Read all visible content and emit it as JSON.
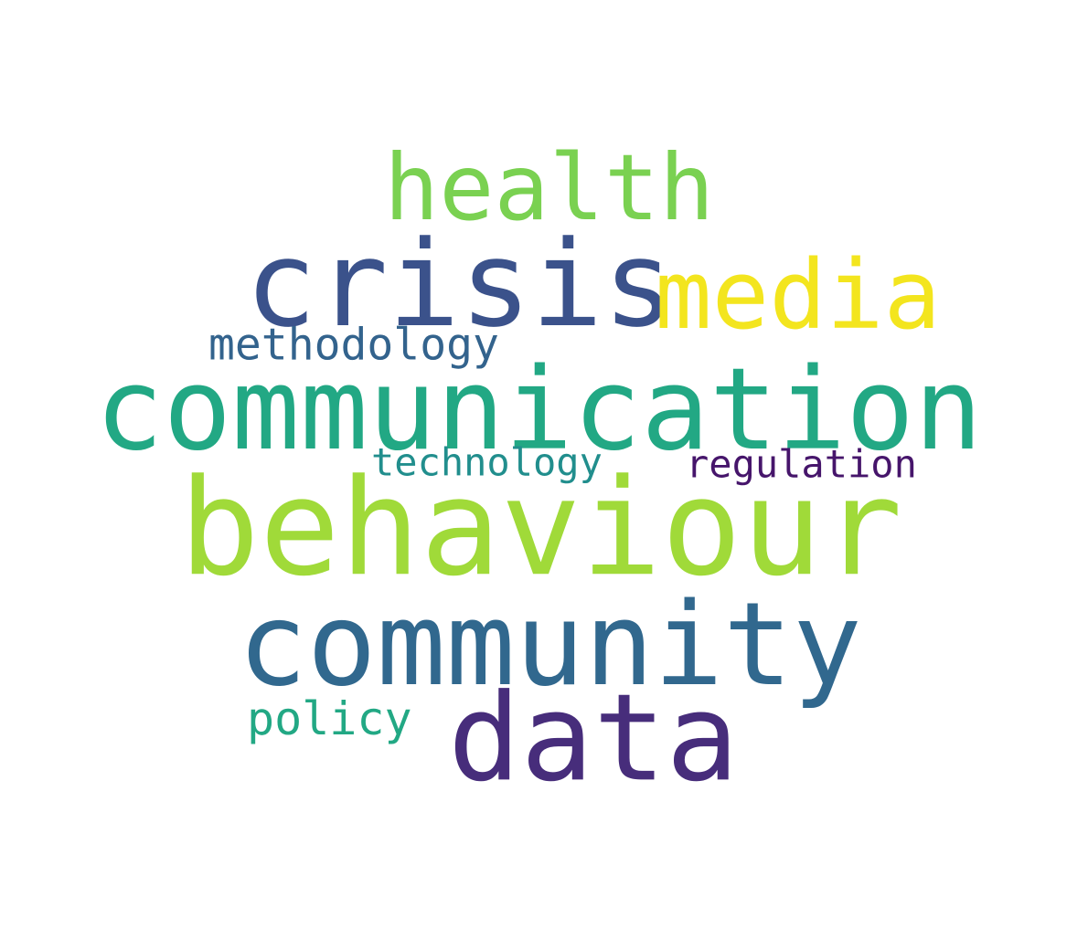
{
  "words": [
    {
      "id": "health",
      "text": "health",
      "color": "#7ad151"
    },
    {
      "id": "crisis",
      "text": "crisis",
      "color": "#3b528b"
    },
    {
      "id": "media",
      "text": "media",
      "color": "#f3e51e"
    },
    {
      "id": "methodology",
      "text": "methodology",
      "color": "#33638d"
    },
    {
      "id": "communication",
      "text": "communication",
      "color": "#22a884"
    },
    {
      "id": "technology",
      "text": "technology",
      "color": "#218e8d"
    },
    {
      "id": "regulation",
      "text": "regulation",
      "color": "#46156b"
    },
    {
      "id": "behaviour",
      "text": "behaviour",
      "color": "#a0da39"
    },
    {
      "id": "community",
      "text": "community",
      "color": "#31688e"
    },
    {
      "id": "policy",
      "text": "policy",
      "color": "#22a884"
    },
    {
      "id": "data",
      "text": "data",
      "color": "#472d7b"
    }
  ]
}
